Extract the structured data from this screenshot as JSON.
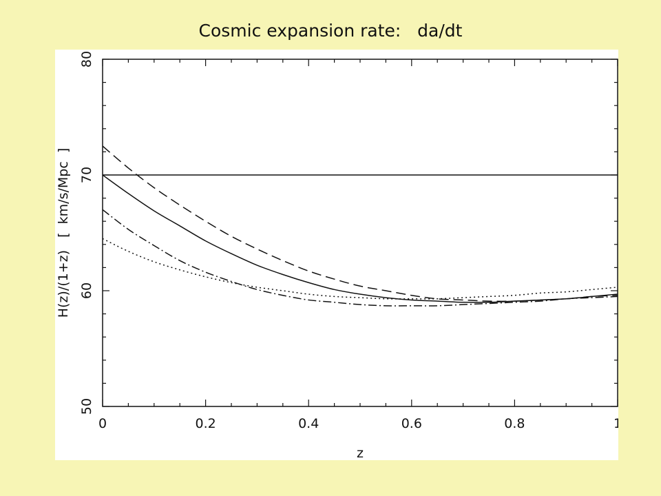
{
  "slide": {
    "title": "Cosmic expansion rate:   da/dt",
    "background": "#f7f5b5",
    "panel_background": "#ffffff"
  },
  "chart_data": {
    "type": "line",
    "title": "",
    "xlabel": "z",
    "ylabel": "H(z)/(1+z)   [  km/s/Mpc  ]",
    "xlim": [
      0,
      1
    ],
    "ylim": [
      50,
      80
    ],
    "xticks": [
      0,
      0.2,
      0.4,
      0.6,
      0.8,
      1
    ],
    "yticks": [
      50,
      60,
      70,
      80
    ],
    "xtick_labels": [
      "0",
      "0.2",
      "0.4",
      "0.6",
      "0.8",
      "1"
    ],
    "ytick_labels": [
      "50",
      "60",
      "70",
      "80"
    ],
    "grid": false,
    "legend": "none",
    "line_color": "#111111",
    "series": [
      {
        "style": "solid-horizontal",
        "x": [
          0,
          1
        ],
        "y": [
          70,
          70
        ]
      },
      {
        "style": "solid",
        "x": [
          0,
          0.05,
          0.1,
          0.15,
          0.2,
          0.25,
          0.3,
          0.35,
          0.4,
          0.45,
          0.5,
          0.55,
          0.6,
          0.65,
          0.7,
          0.75,
          0.8,
          0.85,
          0.9,
          0.95,
          1
        ],
        "y": [
          70,
          68.4,
          66.9,
          65.6,
          64.3,
          63.2,
          62.2,
          61.4,
          60.7,
          60.1,
          59.7,
          59.4,
          59.2,
          59.1,
          59.0,
          59.0,
          59.1,
          59.2,
          59.3,
          59.5,
          59.7
        ]
      },
      {
        "style": "dashed",
        "x": [
          0,
          0.05,
          0.1,
          0.15,
          0.2,
          0.25,
          0.3,
          0.35,
          0.4,
          0.45,
          0.5,
          0.55,
          0.6,
          0.65,
          0.7,
          0.75,
          0.8,
          0.85,
          0.9,
          0.95,
          1
        ],
        "y": [
          72.5,
          70.6,
          68.9,
          67.4,
          66.0,
          64.7,
          63.6,
          62.6,
          61.7,
          61.0,
          60.4,
          60.0,
          59.6,
          59.3,
          59.2,
          59.1,
          59.1,
          59.2,
          59.3,
          59.5,
          59.6
        ]
      },
      {
        "style": "dash-dot",
        "x": [
          0,
          0.05,
          0.1,
          0.15,
          0.2,
          0.25,
          0.3,
          0.35,
          0.4,
          0.45,
          0.5,
          0.55,
          0.6,
          0.65,
          0.7,
          0.75,
          0.8,
          0.85,
          0.9,
          0.95,
          1
        ],
        "y": [
          67,
          65.3,
          63.9,
          62.6,
          61.6,
          60.8,
          60.1,
          59.6,
          59.2,
          59.0,
          58.8,
          58.7,
          58.7,
          58.7,
          58.8,
          58.9,
          59.0,
          59.1,
          59.3,
          59.4,
          59.5
        ]
      },
      {
        "style": "dotted",
        "x": [
          0,
          0.05,
          0.1,
          0.15,
          0.2,
          0.25,
          0.3,
          0.35,
          0.4,
          0.45,
          0.5,
          0.55,
          0.6,
          0.65,
          0.7,
          0.75,
          0.8,
          0.85,
          0.9,
          0.95,
          1
        ],
        "y": [
          64.5,
          63.4,
          62.5,
          61.8,
          61.2,
          60.7,
          60.3,
          60.0,
          59.7,
          59.5,
          59.4,
          59.3,
          59.3,
          59.3,
          59.4,
          59.5,
          59.6,
          59.8,
          59.9,
          60.1,
          60.3
        ]
      }
    ]
  }
}
